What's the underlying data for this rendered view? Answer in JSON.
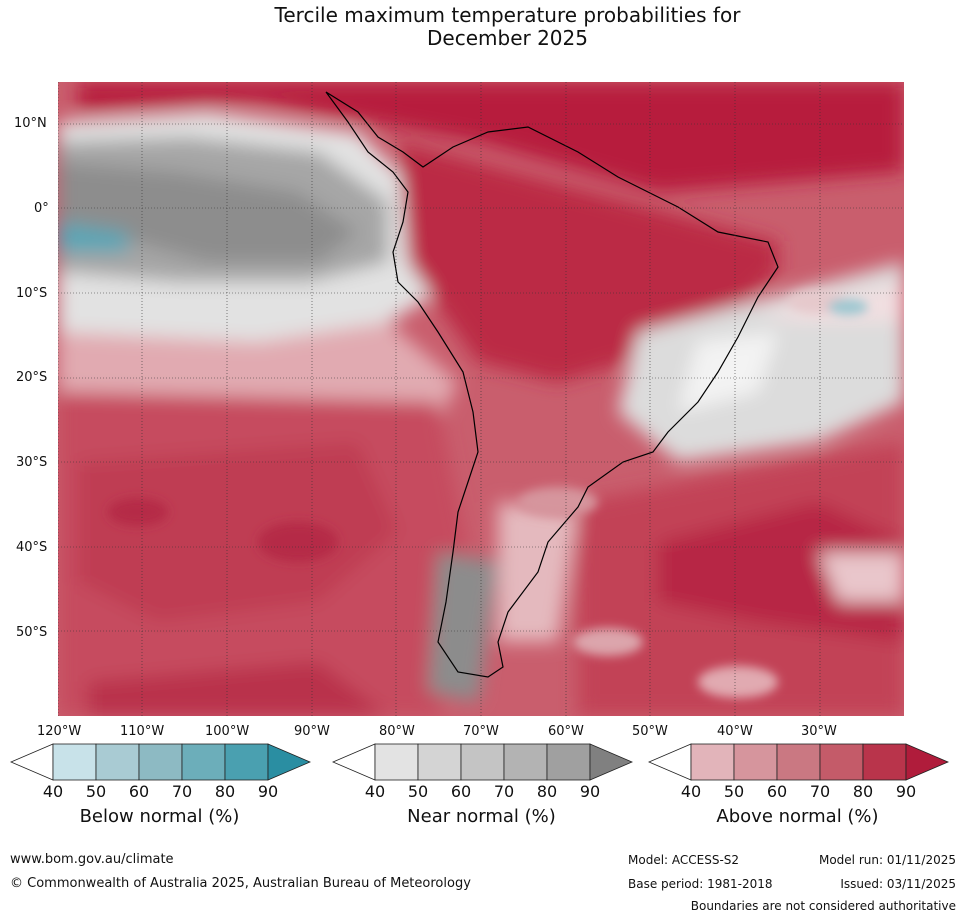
{
  "title": {
    "line1": "Tercile maximum temperature probabilities for",
    "line2": "December 2025"
  },
  "map": {
    "lat_labels": [
      "10°N",
      "0°",
      "10°S",
      "20°S",
      "30°S",
      "40°S",
      "50°S"
    ],
    "lon_labels": [
      "120°W",
      "110°W",
      "100°W",
      "90°W",
      "80°W",
      "70°W",
      "60°W",
      "50°W",
      "40°W",
      "30°W"
    ],
    "extent": {
      "lon": [
        -120,
        -20
      ],
      "lat": [
        -60,
        15
      ]
    }
  },
  "legends": [
    {
      "id": "below",
      "title": "Below normal (%)",
      "ticks": [
        "40",
        "50",
        "60",
        "70",
        "80",
        "90"
      ],
      "colors": [
        "#ffffff",
        "#c8e2e9",
        "#a9cbd3",
        "#8dbac3",
        "#6caeba",
        "#4aa0b0",
        "#2a8ea2"
      ]
    },
    {
      "id": "near",
      "title": "Near normal (%)",
      "ticks": [
        "40",
        "50",
        "60",
        "70",
        "80",
        "90"
      ],
      "colors": [
        "#ffffff",
        "#e3e3e3",
        "#d4d4d4",
        "#c4c4c4",
        "#b3b3b3",
        "#a0a0a0",
        "#808080"
      ]
    },
    {
      "id": "above",
      "title": "Above normal (%)",
      "ticks": [
        "40",
        "50",
        "60",
        "70",
        "80",
        "90"
      ],
      "colors": [
        "#ffffff",
        "#e2b4ba",
        "#d6959d",
        "#ca7882",
        "#c45b69",
        "#b9344b",
        "#b01c3b"
      ]
    }
  ],
  "footer": {
    "url": "www.bom.gov.au/climate",
    "copyright": "© Commonwealth of Australia 2025, Australian Bureau of Meteorology",
    "model": "Model: ACCESS-S2",
    "model_run": "Model run: 01/11/2025",
    "base_period": "Base period: 1981-2018",
    "issued": "Issued: 03/11/2025",
    "disclaimer": "Boundaries are not considered authoritative"
  }
}
